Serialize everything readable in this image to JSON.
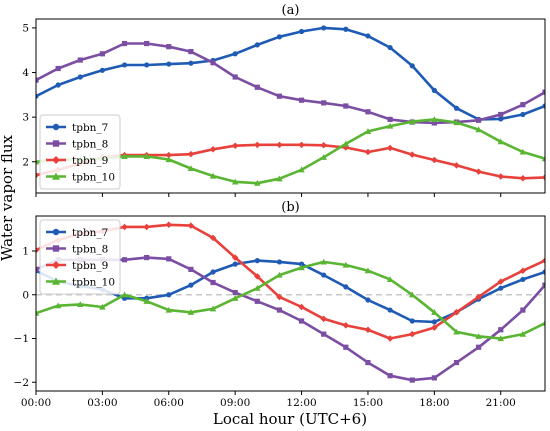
{
  "figure": {
    "ylabel": "Water vapor flux",
    "xlabel": "Local hour (UTC+6)"
  },
  "chart_data": [
    {
      "type": "line",
      "title": "(a)",
      "xlim": [
        0,
        23
      ],
      "ylim": [
        1.3,
        5.2
      ],
      "x_ticks": [
        0,
        3,
        6,
        9,
        12,
        15,
        18,
        21
      ],
      "x_tick_labels": [
        "00:00",
        "03:00",
        "06:00",
        "09:00",
        "12:00",
        "15:00",
        "18:00",
        "21:00"
      ],
      "y_ticks": [
        2,
        3,
        4,
        5
      ],
      "y_tick_labels": [
        "2",
        "3",
        "4",
        "5"
      ],
      "zero_line": false,
      "legend": "lower-left",
      "x": [
        0,
        1,
        2,
        3,
        4,
        5,
        6,
        7,
        8,
        9,
        10,
        11,
        12,
        13,
        14,
        15,
        16,
        17,
        18,
        19,
        20,
        21,
        22,
        23
      ],
      "series": [
        {
          "name": "tpbn_7",
          "color": "#1f5bb5",
          "marker": "circle",
          "values": [
            3.47,
            3.72,
            3.9,
            4.05,
            4.17,
            4.17,
            4.19,
            4.21,
            4.27,
            4.42,
            4.62,
            4.8,
            4.92,
            5.0,
            4.97,
            4.82,
            4.56,
            4.15,
            3.6,
            3.2,
            2.95,
            2.96,
            3.06,
            3.25
          ]
        },
        {
          "name": "tpbn_8",
          "color": "#7b4ea3",
          "marker": "square",
          "values": [
            3.83,
            4.09,
            4.28,
            4.42,
            4.65,
            4.65,
            4.58,
            4.47,
            4.22,
            3.9,
            3.67,
            3.47,
            3.38,
            3.32,
            3.25,
            3.12,
            2.95,
            2.89,
            2.87,
            2.89,
            2.93,
            3.06,
            3.28,
            3.56
          ]
        },
        {
          "name": "tpbn_9",
          "color": "#e8413c",
          "marker": "diamond",
          "values": [
            1.7,
            1.82,
            1.96,
            2.1,
            2.15,
            2.15,
            2.15,
            2.17,
            2.28,
            2.36,
            2.38,
            2.38,
            2.38,
            2.37,
            2.32,
            2.22,
            2.31,
            2.16,
            2.04,
            1.92,
            1.78,
            1.67,
            1.63,
            1.65
          ]
        },
        {
          "name": "tpbn_10",
          "color": "#5ab533",
          "marker": "triangle",
          "values": [
            2.0,
            2.05,
            2.05,
            2.07,
            2.12,
            2.12,
            2.05,
            1.85,
            1.68,
            1.55,
            1.52,
            1.62,
            1.82,
            2.1,
            2.4,
            2.68,
            2.8,
            2.9,
            2.95,
            2.88,
            2.72,
            2.45,
            2.22,
            2.07
          ]
        }
      ]
    },
    {
      "type": "line",
      "title": "(b)",
      "xlim": [
        0,
        23
      ],
      "ylim": [
        -2.2,
        1.8
      ],
      "x_ticks": [
        0,
        3,
        6,
        9,
        12,
        15,
        18,
        21
      ],
      "x_tick_labels": [
        "00:00",
        "03:00",
        "06:00",
        "09:00",
        "12:00",
        "15:00",
        "18:00",
        "21:00"
      ],
      "y_ticks": [
        -2,
        -1,
        0,
        1
      ],
      "y_tick_labels": [
        "−2",
        "−1",
        "0",
        "1"
      ],
      "zero_line": true,
      "legend": "upper-left",
      "x": [
        0,
        1,
        2,
        3,
        4,
        5,
        6,
        7,
        8,
        9,
        10,
        11,
        12,
        13,
        14,
        15,
        16,
        17,
        18,
        19,
        20,
        21,
        22,
        23
      ],
      "series": [
        {
          "name": "tpbn_7",
          "color": "#1f5bb5",
          "marker": "circle",
          "values": [
            0.55,
            0.3,
            0.2,
            0.12,
            -0.08,
            -0.08,
            0.0,
            0.22,
            0.52,
            0.7,
            0.78,
            0.75,
            0.7,
            0.45,
            0.18,
            -0.12,
            -0.35,
            -0.6,
            -0.62,
            -0.4,
            -0.1,
            0.15,
            0.35,
            0.52
          ]
        },
        {
          "name": "tpbn_8",
          "color": "#7b4ea3",
          "marker": "square",
          "values": [
            0.58,
            0.8,
            0.8,
            0.8,
            0.8,
            0.85,
            0.82,
            0.58,
            0.28,
            0.05,
            -0.15,
            -0.35,
            -0.6,
            -0.9,
            -1.2,
            -1.55,
            -1.85,
            -1.95,
            -1.9,
            -1.55,
            -1.2,
            -0.8,
            -0.35,
            0.22
          ]
        },
        {
          "name": "tpbn_9",
          "color": "#e8413c",
          "marker": "diamond",
          "values": [
            1.02,
            1.25,
            1.4,
            1.45,
            1.55,
            1.55,
            1.6,
            1.58,
            1.3,
            0.85,
            0.42,
            -0.05,
            -0.28,
            -0.55,
            -0.7,
            -0.8,
            -1.0,
            -0.9,
            -0.75,
            -0.4,
            -0.05,
            0.3,
            0.55,
            0.78
          ]
        },
        {
          "name": "tpbn_10",
          "color": "#5ab533",
          "marker": "triangle",
          "values": [
            -0.42,
            -0.25,
            -0.22,
            -0.28,
            0.0,
            -0.15,
            -0.35,
            -0.4,
            -0.32,
            -0.08,
            0.15,
            0.45,
            0.62,
            0.75,
            0.68,
            0.55,
            0.35,
            0.0,
            -0.4,
            -0.85,
            -0.95,
            -1.0,
            -0.9,
            -0.65
          ]
        }
      ]
    }
  ]
}
